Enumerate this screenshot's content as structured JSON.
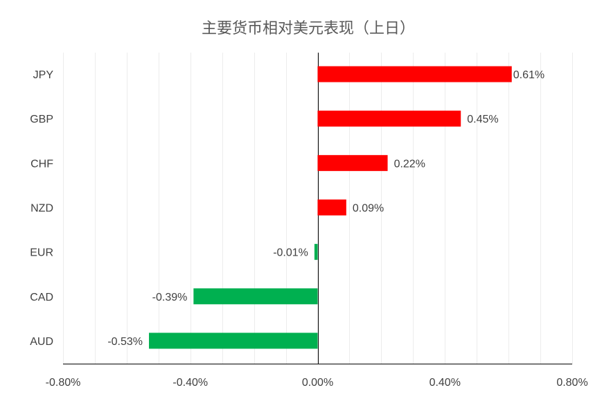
{
  "chart_data": {
    "type": "bar",
    "orientation": "horizontal",
    "title": "主要货币相对美元表现（上日）",
    "categories": [
      "JPY",
      "GBP",
      "CHF",
      "NZD",
      "EUR",
      "CAD",
      "AUD"
    ],
    "values": [
      0.61,
      0.45,
      0.22,
      0.09,
      -0.01,
      -0.39,
      -0.53
    ],
    "value_labels": [
      "0.61%",
      "0.45%",
      "0.22%",
      "0.09%",
      "-0.01%",
      "-0.39%",
      "-0.53%"
    ],
    "xlim": [
      -0.8,
      0.8
    ],
    "x_ticks": [
      -0.8,
      -0.4,
      0.0,
      0.4,
      0.8
    ],
    "x_tick_labels": [
      "-0.80%",
      "-0.40%",
      "0.00%",
      "0.40%",
      "0.80%"
    ],
    "unit": "%",
    "grid": true,
    "legend": "none",
    "colors": {
      "positive": "#ff0000",
      "negative": "#00b050",
      "grid": "#ececec",
      "axis": "#000000"
    }
  }
}
